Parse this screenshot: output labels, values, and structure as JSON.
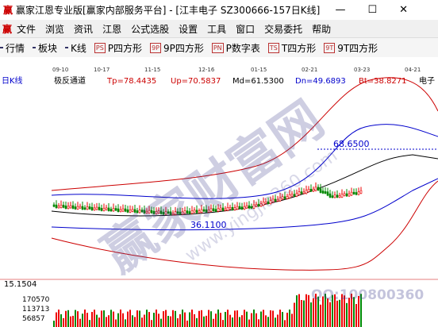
{
  "window": {
    "title": "赢家江恩专业版[赢家内部服务平台] - [江丰电子   SZ300666-157日K线]"
  },
  "menu": [
    "文件",
    "浏览",
    "资讯",
    "江恩",
    "公式选股",
    "设置",
    "工具",
    "窗口",
    "交易委托",
    "帮助"
  ],
  "toolbar": [
    {
      "label": "行情"
    },
    {
      "label": "板块"
    },
    {
      "label": "K线"
    },
    {
      "icon": "PS",
      "label": "P四方形"
    },
    {
      "icon": "9P",
      "label": "9P四方形"
    },
    {
      "icon": "PN",
      "label": "P数字表"
    },
    {
      "icon": "TS",
      "label": "T四方形"
    },
    {
      "icon": "9T",
      "label": "9T四方形"
    }
  ],
  "chart": {
    "dates": [
      "09-10",
      "10-17",
      "11-15",
      "12-16",
      "01-15",
      "02-21",
      "03-23",
      "04-21"
    ],
    "indicator": {
      "period": "日K线",
      "name": "极反通道",
      "params": [
        "Tp=78.4435",
        "Up=70.5837",
        "Md=61.5300",
        "Dn=49.6893",
        "Bt=38.8271"
      ],
      "stock": "电子"
    },
    "annotations": {
      "high": "68.6500",
      "low": "36.1100"
    },
    "volume": {
      "top": "15.1504",
      "ticks": [
        "170570",
        "113713",
        "56857"
      ]
    }
  },
  "watermark": {
    "brand": "赢家财富网",
    "site": "www.yingjia360.com",
    "qq": "QQ:100800360"
  }
}
